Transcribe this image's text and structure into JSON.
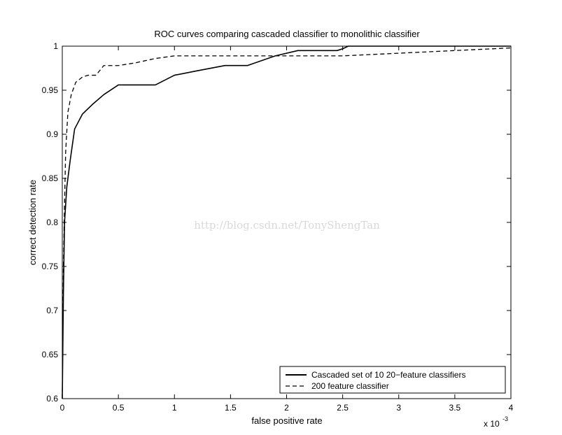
{
  "chart_data": {
    "type": "line",
    "title": "ROC curves comparing cascaded classifier to monolithic classifier",
    "xlabel": "false positive rate",
    "ylabel": "correct detection rate",
    "x_multiplier": "x 10",
    "x_multiplier_exponent": "-3",
    "xlim": [
      0,
      0.004
    ],
    "ylim": [
      0.6,
      1.0
    ],
    "x_ticks": [
      0,
      0.0005,
      0.001,
      0.0015,
      0.002,
      0.0025,
      0.003,
      0.0035,
      0.004
    ],
    "x_tick_labels": [
      "0",
      "0.5",
      "1",
      "1.5",
      "2",
      "2.5",
      "3",
      "3.5",
      "4"
    ],
    "y_ticks": [
      0.6,
      0.65,
      0.7,
      0.75,
      0.8,
      0.85,
      0.9,
      0.95,
      1.0
    ],
    "y_tick_labels": [
      "0.6",
      "0.65",
      "0.7",
      "0.75",
      "0.8",
      "0.85",
      "0.9",
      "0.95",
      "1"
    ],
    "grid": false,
    "legend_position": "bottom-right",
    "series": [
      {
        "name": "Cascaded set of 10 20−feature classifiers",
        "style": "solid",
        "color": "#000000",
        "x": [
          0.0,
          1e-05,
          2e-05,
          4e-05,
          7e-05,
          0.00011,
          0.00018,
          0.00027,
          0.00037,
          0.0005,
          0.00065,
          0.00083,
          0.001,
          0.0012,
          0.00145,
          0.00165,
          0.0019,
          0.0021,
          0.0023,
          0.00245,
          0.0025,
          0.00255,
          0.004
        ],
        "y": [
          0.6,
          0.72,
          0.8,
          0.84,
          0.87,
          0.906,
          0.923,
          0.934,
          0.945,
          0.956,
          0.956,
          0.956,
          0.967,
          0.972,
          0.978,
          0.978,
          0.989,
          0.995,
          0.995,
          0.995,
          0.997,
          1.0,
          1.0
        ]
      },
      {
        "name": "200 feature classifier",
        "style": "dashed",
        "color": "#000000",
        "x": [
          0.0,
          5e-06,
          1e-05,
          2e-05,
          3e-05,
          5e-05,
          8e-05,
          0.00012,
          0.00018,
          0.00023,
          0.0003,
          0.00037,
          0.0005,
          0.00065,
          0.00083,
          0.001,
          0.0015,
          0.002,
          0.0025,
          0.003,
          0.0035,
          0.004
        ],
        "y": [
          0.6,
          0.68,
          0.75,
          0.82,
          0.88,
          0.925,
          0.945,
          0.959,
          0.965,
          0.967,
          0.967,
          0.978,
          0.978,
          0.981,
          0.986,
          0.989,
          0.989,
          0.989,
          0.989,
          0.992,
          0.995,
          0.998
        ]
      }
    ]
  },
  "watermark": "http://blog.csdn.net/TonyShengTan"
}
